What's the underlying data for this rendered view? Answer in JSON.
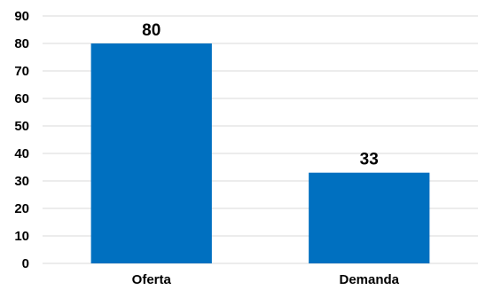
{
  "chart_data": {
    "type": "bar",
    "categories": [
      "Oferta",
      "Demanda"
    ],
    "values": [
      80,
      33
    ],
    "ylim": [
      0,
      90
    ],
    "yticks": [
      0,
      10,
      20,
      30,
      40,
      50,
      60,
      70,
      80,
      90
    ],
    "grid": true,
    "bar_color": "#0070c0",
    "data_labels": [
      "80",
      "33"
    ]
  }
}
